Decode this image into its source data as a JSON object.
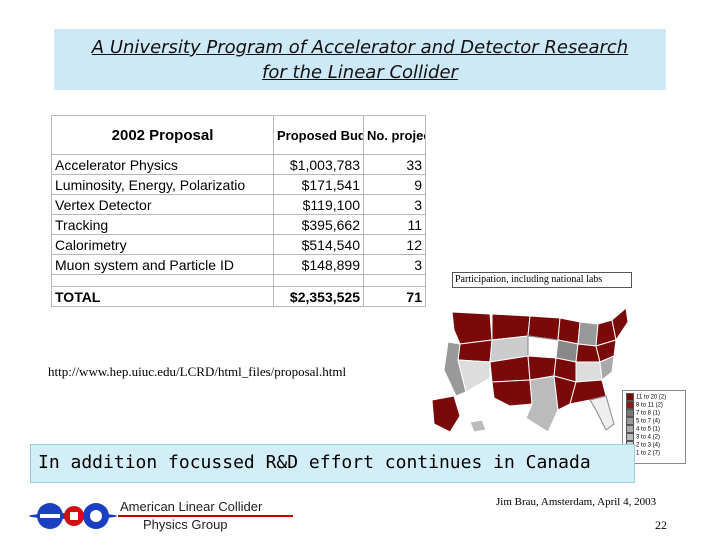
{
  "slide": {
    "title_line1": "A University Program of Accelerator and Detector Research",
    "title_line2": "for the Linear Collider",
    "url": "http://www.hep.uiuc.edu/LCRD/html_files/proposal.html",
    "banner": "In addition focussed R&D effort continues in Canada",
    "footer": "Jim Brau, Amsterdam, April 4, 2003",
    "page_number": "22"
  },
  "table": {
    "headers": [
      "2002 Proposal",
      "Proposed Budget",
      "No. projects"
    ],
    "rows": [
      {
        "area": "Accelerator Physics",
        "budget": "$1,003,783",
        "projects": "33"
      },
      {
        "area": "Luminosity, Energy, Polarizatio",
        "budget": "$171,541",
        "projects": "9"
      },
      {
        "area": "Vertex Detector",
        "budget": "$119,100",
        "projects": "3"
      },
      {
        "area": "Tracking",
        "budget": "$395,662",
        "projects": "11"
      },
      {
        "area": "Calorimetry",
        "budget": "$514,540",
        "projects": "12"
      },
      {
        "area": "Muon system and Particle ID",
        "budget": "$148,899",
        "projects": "3"
      }
    ],
    "total": {
      "label": "TOTAL",
      "budget": "$2,353,525",
      "projects": "71"
    }
  },
  "map": {
    "caption": "Participation, including national labs",
    "legend": [
      {
        "label": "11 to 20  (2)",
        "color": "#7a0a0a"
      },
      {
        "label": "8 to 11  (2)",
        "color": "#8b1a1a"
      },
      {
        "label": "7 to 8  (1)",
        "color": "#777777"
      },
      {
        "label": "5 to 7  (4)",
        "color": "#999999"
      },
      {
        "label": "4 to 5  (1)",
        "color": "#aaaaaa"
      },
      {
        "label": "3 to 4  (2)",
        "color": "#bbbbbb"
      },
      {
        "label": "2 to 3  (4)",
        "color": "#cccccc"
      },
      {
        "label": "1 to 2  (7)",
        "color": "#ffffff"
      }
    ]
  },
  "org": {
    "line1": "American Linear Collider",
    "line2": "Physics Group"
  },
  "colors": {
    "title_bg": "#cde9f7",
    "banner_bg": "#d2eef8",
    "map_red": "#7a0a0a",
    "logo_blue": "#1a3fc0",
    "logo_red": "#d01010"
  }
}
